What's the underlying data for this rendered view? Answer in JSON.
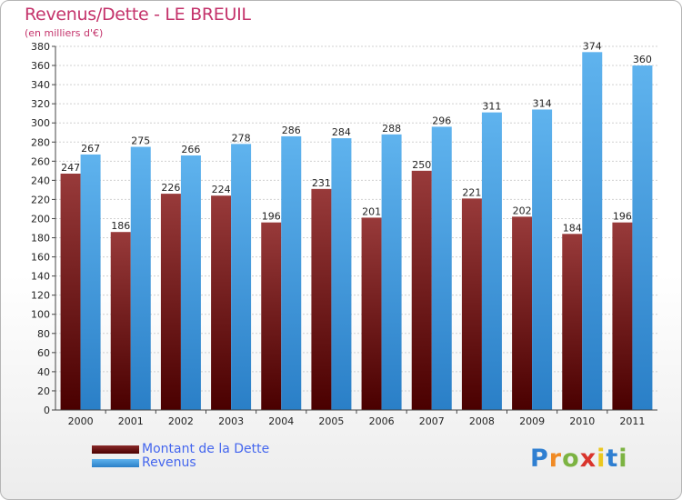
{
  "title": "Revenus/Dette - LE BREUIL",
  "subtitle": "(en milliers d'€)",
  "logo": {
    "text": "Proxiti",
    "colors": [
      "#2f7fd1",
      "#f08a24",
      "#7cb342",
      "#d9342c",
      "#ebc71e",
      "#2f7fd1",
      "#7cb342"
    ]
  },
  "chart_data": {
    "type": "bar",
    "categories": [
      "2000",
      "2001",
      "2002",
      "2003",
      "2004",
      "2005",
      "2006",
      "2007",
      "2008",
      "2009",
      "2010",
      "2011"
    ],
    "series": [
      {
        "name": "Montant de la Dette",
        "color": "#7a1f1f",
        "values": [
          247,
          186,
          226,
          224,
          196,
          231,
          201,
          250,
          221,
          202,
          184,
          196
        ]
      },
      {
        "name": "Revenus",
        "color": "#4aa3e6",
        "values": [
          267,
          275,
          266,
          278,
          286,
          284,
          288,
          296,
          311,
          314,
          374,
          360
        ]
      }
    ],
    "ylim": [
      0,
      380
    ],
    "ytick_step": 20,
    "grid": true,
    "legend": "bottom-left"
  }
}
